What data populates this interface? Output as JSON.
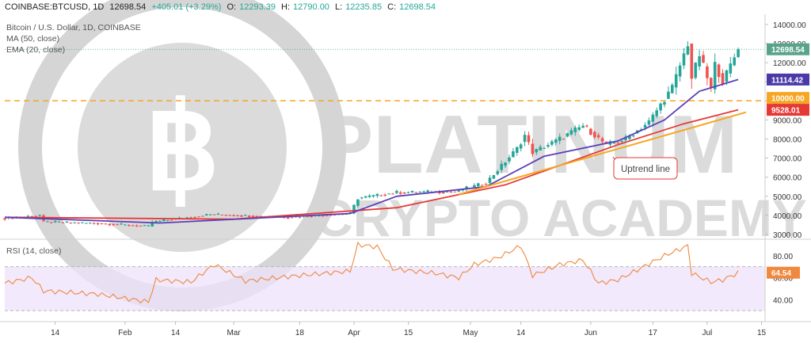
{
  "header": {
    "symbol": "COINBASE:BTCUSD, 1D",
    "last": "12698.54",
    "change": "+405.01 (+3.29%)",
    "open_label": "O:",
    "open": "12293.39",
    "high_label": "H:",
    "high": "12790.00",
    "low_label": "L:",
    "low": "12235.85",
    "close_label": "C:",
    "close": "12698.54"
  },
  "legend": {
    "title": "Bitcoin / U.S. Dollar, 1D, COINBASE",
    "ma": "MA (50, close)",
    "ema": "EMA (20, close)",
    "rsi": "RSI (14, close)"
  },
  "watermark": {
    "line1": "PLATINUM",
    "line2": "CRYPTO ACADEMY"
  },
  "annotation": {
    "uptrend": "Uptrend line"
  },
  "colors": {
    "up": "#26a69a",
    "down": "#ef5350",
    "ema": "#5b3fb8",
    "ma": "#e53935",
    "trendline": "#f5a623",
    "resistance": "#f5a623",
    "rsi": "#f0883e",
    "rsi_band": "#ede1fb",
    "watermark": "#d5d5d5",
    "last_price_tag": "#59a38a",
    "ema_tag": "#4a3aa8",
    "ma_tag": "#e53935",
    "level_tag": "#f5a623"
  },
  "chart_data": [
    {
      "type": "candlestick",
      "title": "Bitcoin / U.S. Dollar, 1D, COINBASE",
      "x_tick_labels": [
        "14",
        "Feb",
        "14",
        "Mar",
        "18",
        "Apr",
        "15",
        "May",
        "14",
        "Jun",
        "17",
        "Jul",
        "15"
      ],
      "y_tick_labels": [
        "3000.00",
        "4000.00",
        "5000.00",
        "6000.00",
        "7000.00",
        "8000.00",
        "9000.00",
        "10000.00",
        "11000.00",
        "12000.00",
        "13000.00",
        "14000.00"
      ],
      "ylim": [
        2700,
        14500
      ],
      "price_points": [
        {
          "date": "2019-01-01",
          "price": 3850
        },
        {
          "date": "2019-01-10",
          "price": 4000
        },
        {
          "date": "2019-01-11",
          "price": 3650
        },
        {
          "date": "2019-01-25",
          "price": 3580
        },
        {
          "date": "2019-02-07",
          "price": 3420
        },
        {
          "date": "2019-02-08",
          "price": 3650
        },
        {
          "date": "2019-02-23",
          "price": 4050
        },
        {
          "date": "2019-03-15",
          "price": 3900
        },
        {
          "date": "2019-03-31",
          "price": 4100
        },
        {
          "date": "2019-04-02",
          "price": 4900
        },
        {
          "date": "2019-04-12",
          "price": 5200
        },
        {
          "date": "2019-04-27",
          "price": 5250
        },
        {
          "date": "2019-05-05",
          "price": 5700
        },
        {
          "date": "2019-05-13",
          "price": 7500
        },
        {
          "date": "2019-05-15",
          "price": 8200
        },
        {
          "date": "2019-05-17",
          "price": 7300
        },
        {
          "date": "2019-05-23",
          "price": 7900
        },
        {
          "date": "2019-05-30",
          "price": 8700
        },
        {
          "date": "2019-06-05",
          "price": 7700
        },
        {
          "date": "2019-06-10",
          "price": 8000
        },
        {
          "date": "2019-06-16",
          "price": 8900
        },
        {
          "date": "2019-06-22",
          "price": 10700
        },
        {
          "date": "2019-06-26",
          "price": 13000
        },
        {
          "date": "2019-06-27",
          "price": 11200
        },
        {
          "date": "2019-06-29",
          "price": 12400
        },
        {
          "date": "2019-07-02",
          "price": 10600
        },
        {
          "date": "2019-07-03",
          "price": 11900
        },
        {
          "date": "2019-07-05",
          "price": 11000
        },
        {
          "date": "2019-07-08",
          "price": 12293
        },
        {
          "date": "2019-07-09",
          "price": 12699
        }
      ],
      "latest_candle": {
        "date": "2019-07-09",
        "open": 12293.39,
        "high": 12790.0,
        "low": 12235.85,
        "close": 12698.54
      },
      "ema20_points": [
        {
          "date": "2019-01-01",
          "value": 3900
        },
        {
          "date": "2019-02-10",
          "value": 3600
        },
        {
          "date": "2019-03-31",
          "value": 4100
        },
        {
          "date": "2019-04-12",
          "value": 5000
        },
        {
          "date": "2019-05-05",
          "value": 5500
        },
        {
          "date": "2019-05-20",
          "value": 7100
        },
        {
          "date": "2019-06-08",
          "value": 7900
        },
        {
          "date": "2019-06-20",
          "value": 9000
        },
        {
          "date": "2019-06-29",
          "value": 10500
        },
        {
          "date": "2019-07-09",
          "value": 11114
        }
      ],
      "ma50_points": [
        {
          "date": "2019-01-01",
          "value": 3900
        },
        {
          "date": "2019-03-01",
          "value": 3800
        },
        {
          "date": "2019-04-12",
          "value": 4400
        },
        {
          "date": "2019-05-10",
          "value": 5600
        },
        {
          "date": "2019-06-08",
          "value": 7700
        },
        {
          "date": "2019-06-25",
          "value": 8800
        },
        {
          "date": "2019-07-09",
          "value": 9528
        }
      ],
      "trendline": {
        "start": {
          "date": "2019-04-28",
          "value": 5100
        },
        "end": {
          "date": "2019-07-11",
          "value": 9400
        }
      },
      "resistance_level": 10000,
      "price_tags": [
        {
          "label": "12698.54",
          "value": 12698.54,
          "role": "last"
        },
        {
          "label": "11114.42",
          "value": 11114.42,
          "role": "ema"
        },
        {
          "label": "10000.00",
          "value": 10000,
          "role": "level"
        },
        {
          "label": "9528.01",
          "value": 9528.01,
          "role": "ma"
        }
      ]
    },
    {
      "type": "line",
      "title": "RSI (14, close)",
      "y_tick_labels": [
        "40.00",
        "60.00",
        "80.00"
      ],
      "ylim": [
        20,
        95
      ],
      "overbought": 70,
      "oversold": 30,
      "last_value": 64.54,
      "last_label": "64.54",
      "rsi_points": [
        {
          "date": "2019-01-01",
          "value": 55
        },
        {
          "date": "2019-01-08",
          "value": 60
        },
        {
          "date": "2019-01-11",
          "value": 48
        },
        {
          "date": "2019-01-25",
          "value": 45
        },
        {
          "date": "2019-02-07",
          "value": 38
        },
        {
          "date": "2019-02-09",
          "value": 58
        },
        {
          "date": "2019-02-18",
          "value": 56
        },
        {
          "date": "2019-02-24",
          "value": 72
        },
        {
          "date": "2019-03-04",
          "value": 57
        },
        {
          "date": "2019-03-18",
          "value": 62
        },
        {
          "date": "2019-03-31",
          "value": 66
        },
        {
          "date": "2019-04-02",
          "value": 90
        },
        {
          "date": "2019-04-07",
          "value": 88
        },
        {
          "date": "2019-04-11",
          "value": 68
        },
        {
          "date": "2019-04-22",
          "value": 64
        },
        {
          "date": "2019-04-28",
          "value": 60
        },
        {
          "date": "2019-05-02",
          "value": 72
        },
        {
          "date": "2019-05-08",
          "value": 78
        },
        {
          "date": "2019-05-14",
          "value": 89
        },
        {
          "date": "2019-05-17",
          "value": 62
        },
        {
          "date": "2019-05-24",
          "value": 72
        },
        {
          "date": "2019-05-30",
          "value": 76
        },
        {
          "date": "2019-06-03",
          "value": 55
        },
        {
          "date": "2019-06-08",
          "value": 58
        },
        {
          "date": "2019-06-13",
          "value": 67
        },
        {
          "date": "2019-06-20",
          "value": 80
        },
        {
          "date": "2019-06-26",
          "value": 89
        },
        {
          "date": "2019-06-27",
          "value": 64
        },
        {
          "date": "2019-07-02",
          "value": 56
        },
        {
          "date": "2019-07-05",
          "value": 58
        },
        {
          "date": "2019-07-09",
          "value": 64.54
        }
      ]
    }
  ]
}
